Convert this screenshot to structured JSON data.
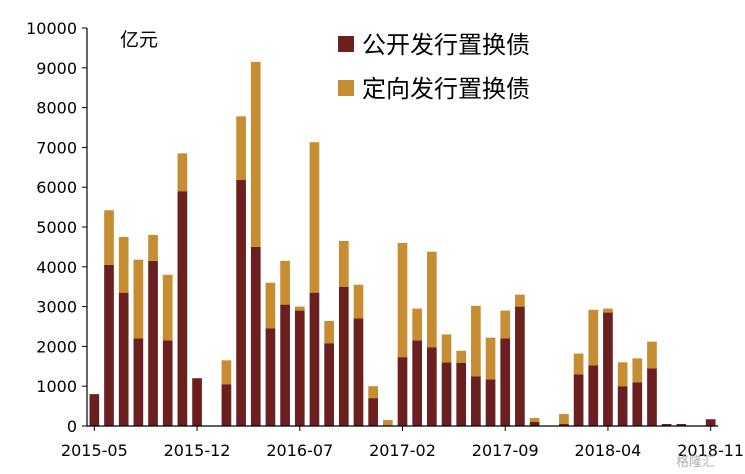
{
  "chart_data": {
    "type": "bar",
    "stacked": true,
    "unit_label": "亿元",
    "ylim": [
      0,
      10000
    ],
    "yticks": [
      0,
      1000,
      2000,
      3000,
      4000,
      5000,
      6000,
      7000,
      8000,
      9000,
      10000
    ],
    "x_tick_labels": [
      {
        "index": 0,
        "label": "2015-05"
      },
      {
        "index": 7,
        "label": "2015-12"
      },
      {
        "index": 14,
        "label": "2016-07"
      },
      {
        "index": 21,
        "label": "2017-02"
      },
      {
        "index": 28,
        "label": "2017-09"
      },
      {
        "index": 35,
        "label": "2018-04"
      },
      {
        "index": 42,
        "label": "2018-11"
      }
    ],
    "categories": [
      "2015-05",
      "2015-06",
      "2015-07",
      "2015-08",
      "2015-09",
      "2015-10",
      "2015-11",
      "2015-12",
      "2016-01",
      "2016-02",
      "2016-03",
      "2016-04",
      "2016-05",
      "2016-06",
      "2016-07",
      "2016-08",
      "2016-09",
      "2016-10",
      "2016-11",
      "2016-12",
      "2017-01",
      "2017-02",
      "2017-03",
      "2017-04",
      "2017-05",
      "2017-06",
      "2017-07",
      "2017-08",
      "2017-09",
      "2017-10",
      "2017-11",
      "2017-12",
      "2018-01",
      "2018-02",
      "2018-03",
      "2018-04",
      "2018-05",
      "2018-06",
      "2018-07",
      "2018-08",
      "2018-09",
      "2018-10",
      "2018-11"
    ],
    "series": [
      {
        "name": "公开发行置换债",
        "color": "#6b1f1f",
        "values": [
          800,
          4050,
          3350,
          2200,
          4150,
          2150,
          5900,
          1200,
          0,
          1050,
          6180,
          4500,
          2450,
          3050,
          2900,
          3350,
          2080,
          3500,
          2700,
          700,
          0,
          1730,
          2150,
          1980,
          1600,
          1590,
          1250,
          1170,
          2200,
          3000,
          100,
          0,
          50,
          1300,
          1520,
          2850,
          1000,
          1100,
          1450,
          50,
          50,
          0,
          170
        ]
      },
      {
        "name": "定向发行置换债",
        "color": "#c68d33",
        "values": [
          0,
          1370,
          1400,
          1980,
          650,
          1650,
          950,
          0,
          0,
          600,
          1600,
          4650,
          1150,
          1100,
          100,
          3780,
          560,
          1150,
          850,
          300,
          150,
          2870,
          800,
          2400,
          700,
          300,
          1770,
          1050,
          700,
          300,
          100,
          0,
          250,
          520,
          1400,
          100,
          600,
          600,
          670,
          0,
          0,
          0,
          0
        ]
      }
    ],
    "legend_position": "top-right",
    "grid": false
  },
  "watermark": "格隆汇"
}
